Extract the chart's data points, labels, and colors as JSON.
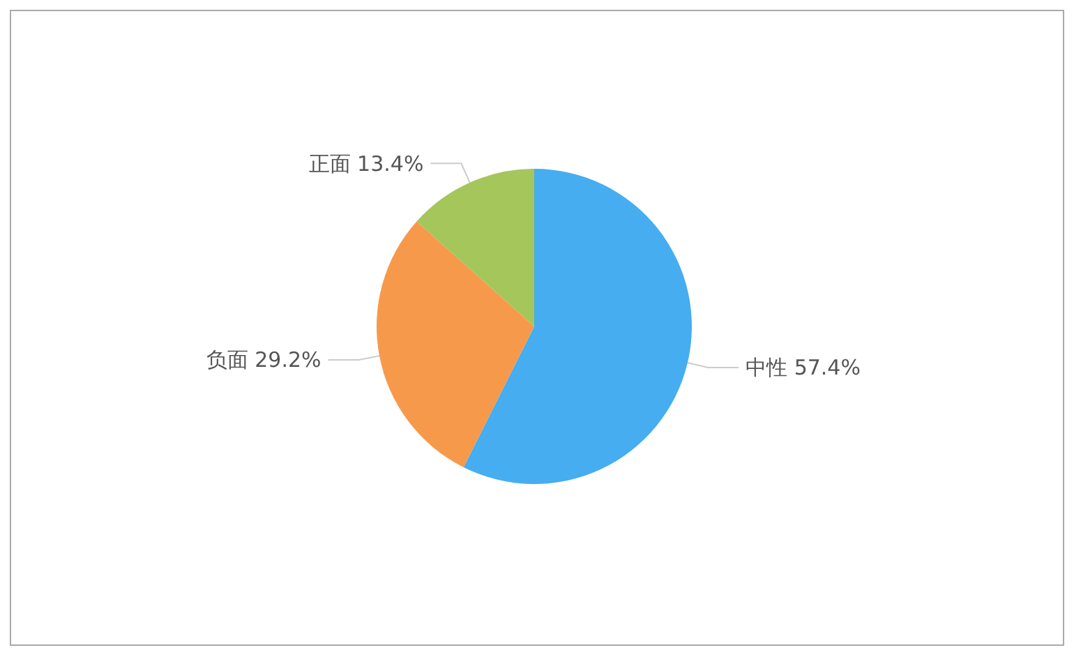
{
  "chart_data": {
    "type": "pie",
    "categories": [
      "中性",
      "负面",
      "正面"
    ],
    "values": [
      57.4,
      29.2,
      13.4
    ],
    "value_labels": [
      "57.4%",
      "29.2%",
      "13.4%"
    ],
    "colors": [
      "#46adf0",
      "#f7994b",
      "#a5c65b"
    ]
  }
}
